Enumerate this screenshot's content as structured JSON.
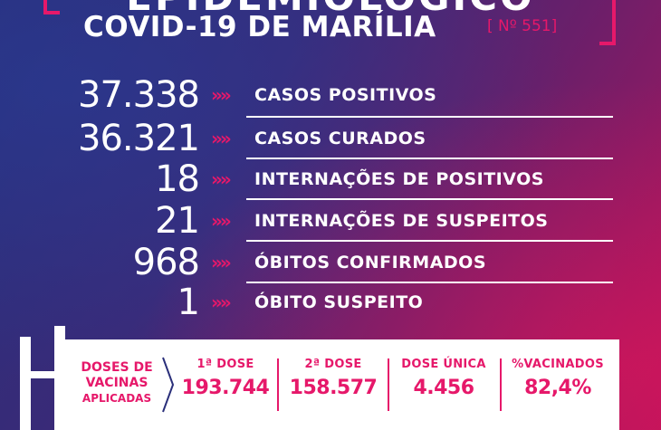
{
  "header": {
    "top_title": "EPIDEMIOLÓGICO",
    "main_title": "COVID-19 DE MARÍLIA",
    "edition": "[ Nº 551]"
  },
  "stats": [
    {
      "value": "37.338",
      "label": "CASOS POSITIVOS"
    },
    {
      "value": "36.321",
      "label": "CASOS CURADOS"
    },
    {
      "value": "18",
      "label": "INTERNAÇÕES DE POSITIVOS"
    },
    {
      "value": "21",
      "label": "INTERNAÇÕES DE SUSPEITOS"
    },
    {
      "value": "968",
      "label": "ÓBITOS CONFIRMADOS"
    },
    {
      "value": "1",
      "label": "ÓBITO SUSPEITO"
    }
  ],
  "arrows": "»»",
  "vaccines": {
    "title_line1": "DOSES DE",
    "title_line2": "VACINAS",
    "title_line3": "APLICADAS",
    "doses": [
      {
        "label": "1ª DOSE",
        "value": "193.744"
      },
      {
        "label": "2ª DOSE",
        "value": "158.577"
      },
      {
        "label": "DOSE ÚNICA",
        "value": "4.456"
      },
      {
        "label": "%VACINADOS",
        "value": "82,4%"
      }
    ]
  },
  "colors": {
    "accent": "#e6186a",
    "background_start": "#2a2f7a",
    "background_end": "#b0155c"
  }
}
